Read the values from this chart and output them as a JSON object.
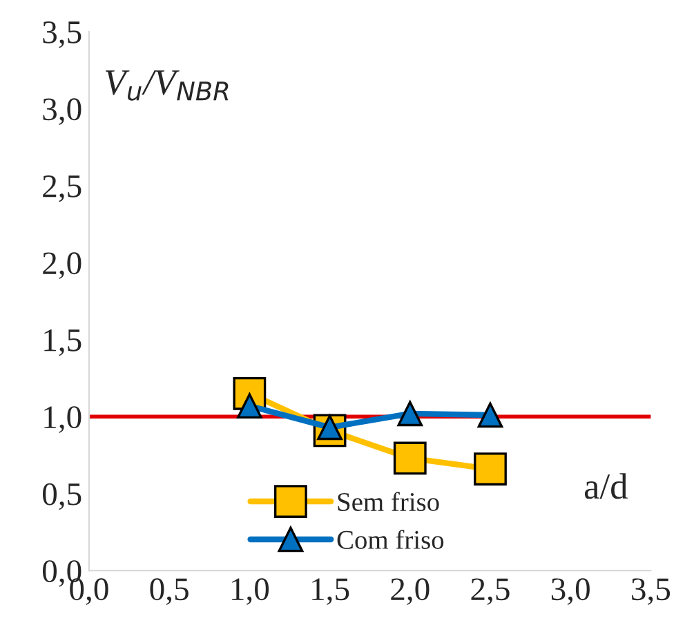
{
  "chart_data": {
    "type": "line",
    "xlabel": "a/d",
    "ylabel": "V$_{u}$/V$_{NBR}$",
    "xlim": [
      0,
      3.5
    ],
    "ylim": [
      0,
      3.5
    ],
    "xticks": [
      {
        "value": 0,
        "label": "0,0"
      },
      {
        "value": 0.5,
        "label": "0,5"
      },
      {
        "value": 1,
        "label": "1,0"
      },
      {
        "value": 1.5,
        "label": "1,5"
      },
      {
        "value": 2,
        "label": "2,0"
      },
      {
        "value": 2.5,
        "label": "2,5"
      },
      {
        "value": 3,
        "label": "3,0"
      },
      {
        "value": 3.5,
        "label": "3,5"
      }
    ],
    "yticks": [
      {
        "value": 0,
        "label": "0,0"
      },
      {
        "value": 0.5,
        "label": "0,5"
      },
      {
        "value": 1,
        "label": "1,0"
      },
      {
        "value": 1.5,
        "label": "1,5"
      },
      {
        "value": 2,
        "label": "2,0"
      },
      {
        "value": 2.5,
        "label": "2,5"
      },
      {
        "value": 3,
        "label": "3,0"
      },
      {
        "value": 3.5,
        "label": "3,5"
      }
    ],
    "x": [
      1.0,
      1.5,
      2.0,
      2.5
    ],
    "series": [
      {
        "name": "Sem friso",
        "color": "#ffc000",
        "marker": "square",
        "values": [
          1.15,
          0.91,
          0.73,
          0.66
        ]
      },
      {
        "name": "Com friso",
        "color": "#0070c0",
        "marker": "triangle",
        "values": [
          1.07,
          0.93,
          1.02,
          1.01
        ]
      }
    ],
    "ref_lines": [
      {
        "axis": "y",
        "value": 1.0,
        "color": "#e00000"
      }
    ],
    "legend": "bottom",
    "grid": false
  }
}
